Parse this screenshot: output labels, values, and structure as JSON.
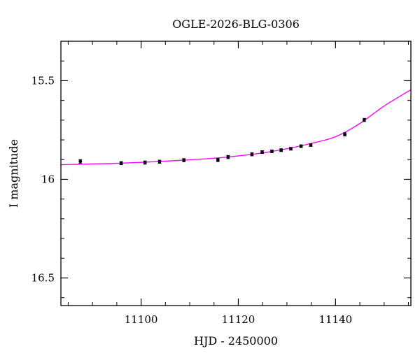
{
  "chart_data": {
    "type": "scatter",
    "title": "OGLE-2026-BLG-0306",
    "xlabel": "HJD - 2450000",
    "ylabel": "I magnitude",
    "xlim": [
      11083.5,
      11155.5
    ],
    "ylim": [
      15.3,
      16.64
    ],
    "y_inverted": true,
    "x_major_ticks": [
      11100,
      11120,
      11140
    ],
    "x_tick_labels": [
      "11100",
      "11120",
      "11140"
    ],
    "x_minor_step": 5,
    "y_major_ticks": [
      15.5,
      16,
      16.5
    ],
    "y_tick_labels": [
      "15.5",
      "16",
      "16.5"
    ],
    "y_minor_step": 0.1,
    "grid": false,
    "colors": {
      "points": "#000000",
      "model": "#ff00ff"
    },
    "series": [
      {
        "kind": "points",
        "x": [
          11087.5,
          11095.9,
          11100.8,
          11103.8,
          11108.8,
          11115.8,
          11117.9,
          11122.8,
          11124.9,
          11126.9,
          11128.8,
          11130.8,
          11132.9,
          11134.9,
          11141.9,
          11145.9
        ],
        "y": [
          15.909,
          15.918,
          15.915,
          15.911,
          15.903,
          15.902,
          15.887,
          15.873,
          15.862,
          15.858,
          15.852,
          15.845,
          15.832,
          15.826,
          15.772,
          15.699
        ],
        "err": [
          0.009,
          0.008,
          0.008,
          0.008,
          0.008,
          0.008,
          0.008,
          0.008,
          0.007,
          0.007,
          0.007,
          0.007,
          0.007,
          0.007,
          0.008,
          0.008
        ]
      },
      {
        "kind": "model",
        "x": [
          11083.5,
          11090,
          11095,
          11100,
          11105,
          11110,
          11115,
          11120,
          11125,
          11130,
          11135,
          11140,
          11145,
          11150,
          11155.5
        ],
        "y": [
          15.926,
          15.922,
          15.919,
          15.914,
          15.908,
          15.901,
          15.893,
          15.881,
          15.866,
          15.845,
          15.818,
          15.784,
          15.717,
          15.628,
          15.546
        ]
      }
    ]
  }
}
